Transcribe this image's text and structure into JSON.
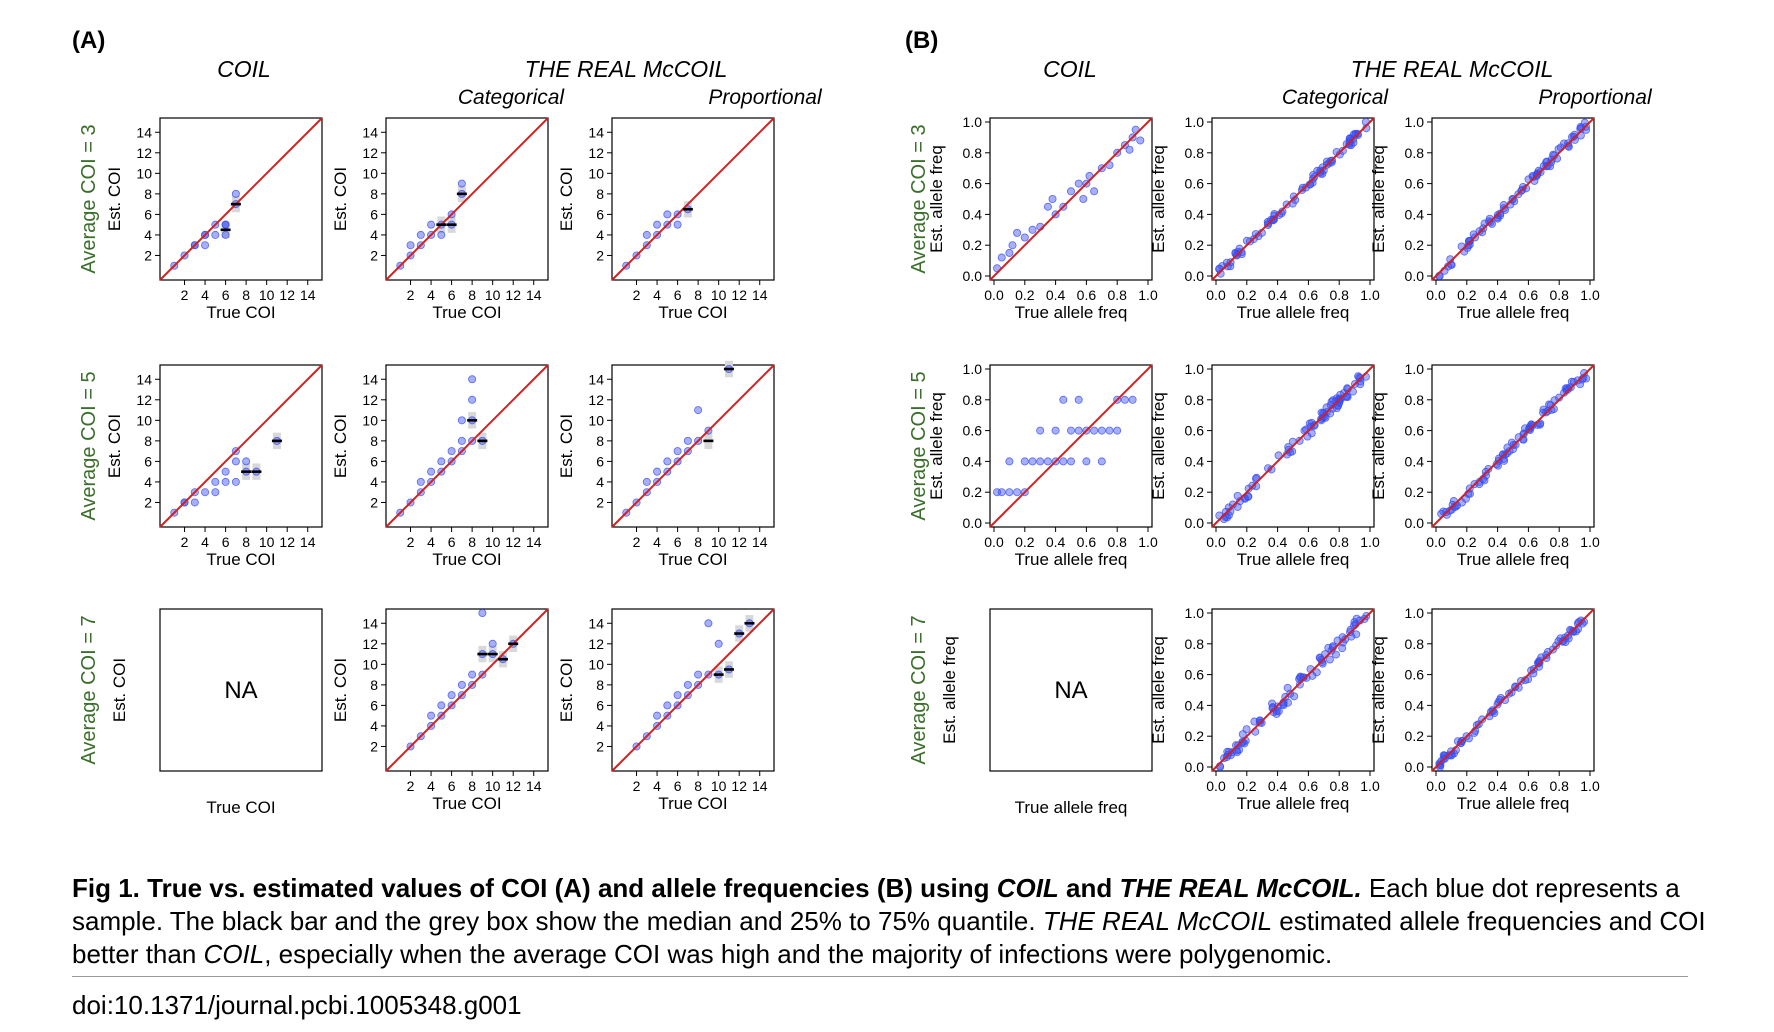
{
  "panels": {
    "A": {
      "label": "(A)",
      "col_titles": [
        "COIL",
        "THE REAL McCOIL"
      ],
      "sub_titles": [
        "Categorical",
        "Proportional"
      ],
      "row_labels": [
        "Average COI = 3",
        "Average COI = 5",
        "Average COI = 7"
      ],
      "xlabel": "True COI",
      "ylabel": "Est. COI",
      "na_text": "NA",
      "ticks": [
        "2",
        "4",
        "6",
        "8",
        "10",
        "12",
        "14"
      ]
    },
    "B": {
      "label": "(B)",
      "col_titles": [
        "COIL",
        "THE REAL McCOIL"
      ],
      "sub_titles": [
        "Categorical",
        "Proportional"
      ],
      "row_labels": [
        "Average COI = 3",
        "Average COI = 5",
        "Average COI = 7"
      ],
      "xlabel": "True allele freq",
      "ylabel": "Est. allele freq",
      "na_text": "NA",
      "ticks": [
        "0.0",
        "0.2",
        "0.4",
        "0.6",
        "0.8",
        "1.0"
      ]
    }
  },
  "colors": {
    "point": "#3a4df0",
    "identity_line": "#d42020",
    "row_label": "#3a6e2a",
    "median_bar": "#000000",
    "iqr_box": "#d8d8d8"
  },
  "chart_data": [
    {
      "type": "scatter",
      "panel": "A",
      "row": "Average COI = 3",
      "col": "COIL",
      "xlim": [
        0,
        15
      ],
      "ylim": [
        0,
        15
      ],
      "x": [
        1,
        2,
        3,
        3,
        4,
        4,
        4,
        5,
        5,
        6,
        6,
        6,
        7,
        7
      ],
      "y": [
        1,
        2,
        3,
        3,
        4,
        3,
        4,
        4,
        5,
        5,
        4,
        5,
        7,
        8
      ],
      "medians": [
        [
          6,
          4.5
        ],
        [
          7,
          7
        ]
      ]
    },
    {
      "type": "scatter",
      "panel": "A",
      "row": "Average COI = 3",
      "col": "Categorical",
      "xlim": [
        0,
        15
      ],
      "ylim": [
        0,
        15
      ],
      "x": [
        1,
        2,
        2,
        3,
        3,
        4,
        4,
        5,
        5,
        6,
        6,
        7,
        7
      ],
      "y": [
        1,
        2,
        3,
        3,
        4,
        4,
        5,
        5,
        4,
        6,
        5,
        8,
        9
      ],
      "medians": [
        [
          5,
          5
        ],
        [
          6,
          5
        ],
        [
          7,
          8
        ]
      ]
    },
    {
      "type": "scatter",
      "panel": "A",
      "row": "Average COI = 3",
      "col": "Proportional",
      "xlim": [
        0,
        15
      ],
      "ylim": [
        0,
        15
      ],
      "x": [
        1,
        2,
        3,
        3,
        4,
        4,
        5,
        5,
        6,
        6,
        7
      ],
      "y": [
        1,
        2,
        3,
        4,
        4,
        5,
        5,
        6,
        6,
        5,
        6.5
      ],
      "medians": [
        [
          7,
          6.5
        ]
      ]
    },
    {
      "type": "scatter",
      "panel": "A",
      "row": "Average COI = 5",
      "col": "COIL",
      "xlim": [
        0,
        15
      ],
      "ylim": [
        0,
        15
      ],
      "x": [
        1,
        2,
        2,
        3,
        3,
        4,
        5,
        5,
        6,
        6,
        7,
        7,
        7,
        8,
        8,
        9,
        11
      ],
      "y": [
        1,
        2,
        2,
        2,
        3,
        3,
        3,
        4,
        4,
        5,
        4,
        6,
        7,
        5,
        6,
        5,
        8
      ],
      "medians": [
        [
          8,
          5
        ],
        [
          9,
          5
        ],
        [
          11,
          8
        ]
      ]
    },
    {
      "type": "scatter",
      "panel": "A",
      "row": "Average COI = 5",
      "col": "Categorical",
      "xlim": [
        0,
        15
      ],
      "ylim": [
        0,
        15
      ],
      "x": [
        1,
        2,
        3,
        3,
        4,
        4,
        5,
        5,
        6,
        6,
        7,
        7,
        7,
        8,
        8,
        8,
        8,
        9
      ],
      "y": [
        1,
        2,
        3,
        4,
        4,
        5,
        5,
        6,
        6,
        7,
        7,
        8,
        10,
        8,
        10,
        12,
        14,
        8
      ],
      "medians": [
        [
          8,
          10
        ],
        [
          9,
          8
        ]
      ]
    },
    {
      "type": "scatter",
      "panel": "A",
      "row": "Average COI = 5",
      "col": "Proportional",
      "xlim": [
        0,
        15
      ],
      "ylim": [
        0,
        15
      ],
      "x": [
        1,
        2,
        3,
        3,
        4,
        4,
        5,
        5,
        6,
        6,
        7,
        7,
        8,
        8,
        9,
        11
      ],
      "y": [
        1,
        2,
        3,
        4,
        4,
        5,
        5,
        6,
        6,
        7,
        7,
        8,
        8,
        11,
        9,
        15
      ],
      "medians": [
        [
          9,
          8
        ],
        [
          11,
          15
        ]
      ]
    },
    {
      "type": "scatter",
      "panel": "A",
      "row": "Average COI = 7",
      "col": "COIL",
      "na": true
    },
    {
      "type": "scatter",
      "panel": "A",
      "row": "Average COI = 7",
      "col": "Categorical",
      "xlim": [
        0,
        15
      ],
      "ylim": [
        0,
        15
      ],
      "x": [
        2,
        3,
        4,
        4,
        5,
        5,
        6,
        6,
        7,
        7,
        8,
        8,
        9,
        9,
        9,
        10,
        10,
        11,
        12
      ],
      "y": [
        2,
        3,
        5,
        4,
        5,
        6,
        6,
        7,
        7,
        8,
        9,
        8,
        11,
        15,
        9,
        11,
        12,
        10.5,
        12
      ],
      "medians": [
        [
          9,
          11
        ],
        [
          10,
          11
        ],
        [
          11,
          10.5
        ],
        [
          12,
          12
        ]
      ]
    },
    {
      "type": "scatter",
      "panel": "A",
      "row": "Average COI = 7",
      "col": "Proportional",
      "xlim": [
        0,
        15
      ],
      "ylim": [
        0,
        15
      ],
      "x": [
        2,
        3,
        4,
        4,
        5,
        5,
        6,
        6,
        7,
        7,
        8,
        8,
        9,
        9,
        10,
        10,
        11,
        12,
        13
      ],
      "y": [
        2,
        3,
        4,
        5,
        5,
        6,
        6,
        7,
        7,
        8,
        8,
        9,
        9,
        14,
        9,
        12,
        9.5,
        13,
        14
      ],
      "medians": [
        [
          10,
          9
        ],
        [
          11,
          9.5
        ],
        [
          12,
          13
        ],
        [
          13,
          14
        ]
      ]
    },
    {
      "type": "scatter",
      "panel": "B",
      "row": "Average COI = 3",
      "col": "COIL",
      "xlim": [
        0,
        1
      ],
      "ylim": [
        0,
        1
      ],
      "x": [
        0.02,
        0.05,
        0.1,
        0.12,
        0.15,
        0.2,
        0.25,
        0.3,
        0.35,
        0.38,
        0.4,
        0.45,
        0.5,
        0.55,
        0.58,
        0.6,
        0.62,
        0.65,
        0.7,
        0.75,
        0.8,
        0.85,
        0.88,
        0.9,
        0.92,
        0.95
      ],
      "y": [
        0.05,
        0.12,
        0.15,
        0.2,
        0.28,
        0.25,
        0.3,
        0.32,
        0.45,
        0.5,
        0.4,
        0.45,
        0.55,
        0.6,
        0.5,
        0.6,
        0.65,
        0.55,
        0.7,
        0.72,
        0.8,
        0.85,
        0.82,
        0.9,
        0.95,
        0.88
      ]
    },
    {
      "type": "scatter",
      "panel": "B",
      "row": "Average COI = 3",
      "col": "Categorical",
      "xlim": [
        0,
        1
      ],
      "ylim": [
        0,
        1
      ],
      "identity_spread": 0.03
    },
    {
      "type": "scatter",
      "panel": "B",
      "row": "Average COI = 3",
      "col": "Proportional",
      "xlim": [
        0,
        1
      ],
      "ylim": [
        0,
        1
      ],
      "identity_spread": 0.03
    },
    {
      "type": "scatter",
      "panel": "B",
      "row": "Average COI = 5",
      "col": "COIL",
      "xlim": [
        0,
        1
      ],
      "ylim": [
        0,
        1
      ],
      "x": [
        0.02,
        0.05,
        0.1,
        0.15,
        0.2,
        0.25,
        0.3,
        0.35,
        0.4,
        0.45,
        0.5,
        0.55,
        0.6,
        0.65,
        0.7,
        0.75,
        0.8,
        0.85,
        0.9,
        0.1,
        0.2,
        0.3,
        0.4,
        0.5,
        0.6,
        0.7,
        0.8,
        0.45,
        0.55
      ],
      "y": [
        0.2,
        0.2,
        0.2,
        0.2,
        0.2,
        0.4,
        0.4,
        0.4,
        0.4,
        0.4,
        0.4,
        0.6,
        0.6,
        0.6,
        0.6,
        0.6,
        0.8,
        0.8,
        0.8,
        0.4,
        0.4,
        0.6,
        0.6,
        0.6,
        0.4,
        0.4,
        0.6,
        0.8,
        0.8
      ]
    },
    {
      "type": "scatter",
      "panel": "B",
      "row": "Average COI = 5",
      "col": "Categorical",
      "xlim": [
        0,
        1
      ],
      "ylim": [
        0,
        1
      ],
      "identity_spread": 0.04
    },
    {
      "type": "scatter",
      "panel": "B",
      "row": "Average COI = 5",
      "col": "Proportional",
      "xlim": [
        0,
        1
      ],
      "ylim": [
        0,
        1
      ],
      "identity_spread": 0.04
    },
    {
      "type": "scatter",
      "panel": "B",
      "row": "Average COI = 7",
      "col": "COIL",
      "na": true
    },
    {
      "type": "scatter",
      "panel": "B",
      "row": "Average COI = 7",
      "col": "Categorical",
      "xlim": [
        0,
        1
      ],
      "ylim": [
        0,
        1
      ],
      "identity_spread": 0.05
    },
    {
      "type": "scatter",
      "panel": "B",
      "row": "Average COI = 7",
      "col": "Proportional",
      "xlim": [
        0,
        1
      ],
      "ylim": [
        0,
        1
      ],
      "identity_spread": 0.03
    }
  ],
  "caption": {
    "fig_label": "Fig 1.",
    "bold_title_1": "True vs. estimated values of COI (A) and allele frequencies (B) using ",
    "bold_italic_1": "COIL",
    "bold_title_2": " and ",
    "bold_italic_2": "THE REAL McCOIL.",
    "text_1": " Each blue dot represents a sample. The black bar and the grey box show the median and 25% to 75% quantile. ",
    "italic_1": "THE REAL McCOIL",
    "text_2": " estimated allele frequencies and COI better than ",
    "italic_2": "COIL",
    "text_3": ", especially when the average COI was high and the majority of infections were polygenomic."
  },
  "doi": "doi:10.1371/journal.pcbi.1005348.g001"
}
